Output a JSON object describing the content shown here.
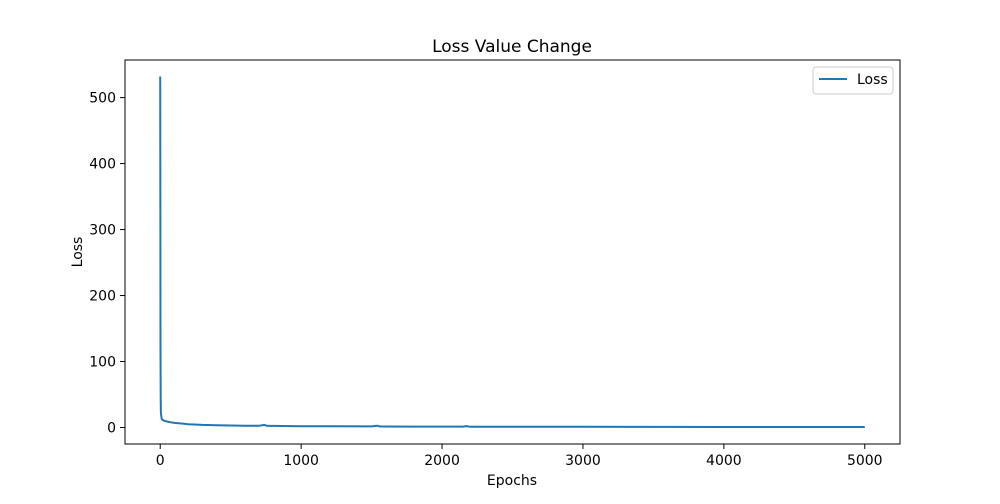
{
  "chart_data": {
    "type": "line",
    "title": "Loss Value Change",
    "xlabel": "Epochs",
    "ylabel": "Loss",
    "xlim": [
      -250,
      5250
    ],
    "ylim": [
      -25,
      557
    ],
    "xticks": [
      0,
      1000,
      2000,
      3000,
      4000,
      5000
    ],
    "yticks": [
      0,
      100,
      200,
      300,
      400,
      500
    ],
    "grid": false,
    "legend": {
      "position": "top-right",
      "entries": [
        "Loss"
      ]
    },
    "series": [
      {
        "name": "Loss",
        "color": "#1f77b4",
        "x": [
          0,
          1,
          2,
          3,
          5,
          8,
          10,
          15,
          20,
          30,
          40,
          50,
          70,
          100,
          150,
          200,
          300,
          400,
          500,
          600,
          700,
          740,
          760,
          800,
          1000,
          1200,
          1500,
          1540,
          1560,
          1800,
          2000,
          2150,
          2170,
          2200,
          2500,
          3000,
          3500,
          4000,
          4500,
          5000
        ],
        "y": [
          532,
          300,
          120,
          45,
          22,
          16,
          14,
          12,
          11,
          10,
          9.5,
          9,
          8,
          7,
          6,
          5,
          4,
          3.5,
          3,
          2.8,
          2.6,
          4,
          2.5,
          2.4,
          2,
          1.8,
          1.6,
          2.8,
          1.5,
          1.4,
          1.3,
          1.3,
          2.2,
          1.2,
          1.1,
          1,
          0.9,
          0.8,
          0.8,
          0.7
        ]
      }
    ]
  }
}
